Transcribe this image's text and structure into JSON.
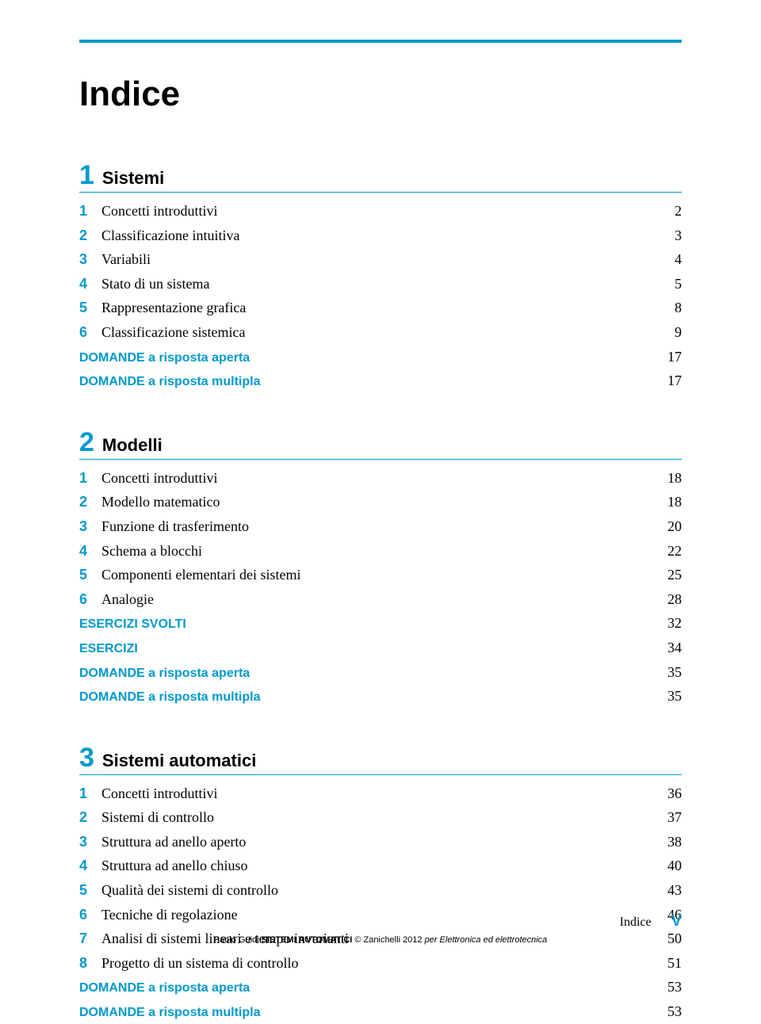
{
  "colors": {
    "accent": "#0099cc",
    "text": "#000000",
    "bg": "#ffffff"
  },
  "title": "Indice",
  "chapters": [
    {
      "num": "1",
      "name": "Sistemi",
      "items": [
        {
          "n": "1",
          "label": "Concetti introduttivi",
          "p": "2"
        },
        {
          "n": "2",
          "label": "Classificazione intuitiva",
          "p": "3"
        },
        {
          "n": "3",
          "label": "Variabili",
          "p": "4"
        },
        {
          "n": "4",
          "label": "Stato di un sistema",
          "p": "5"
        },
        {
          "n": "5",
          "label": "Rappresentazione grafica",
          "p": "8"
        },
        {
          "n": "6",
          "label": "Classificazione sistemica",
          "p": "9"
        },
        {
          "special": true,
          "label": "DOMANDE a risposta aperta",
          "p": "17"
        },
        {
          "special": true,
          "label": "DOMANDE a risposta multipla",
          "p": "17"
        }
      ]
    },
    {
      "num": "2",
      "name": "Modelli",
      "items": [
        {
          "n": "1",
          "label": "Concetti introduttivi",
          "p": "18"
        },
        {
          "n": "2",
          "label": "Modello matematico",
          "p": "18"
        },
        {
          "n": "3",
          "label": "Funzione di trasferimento",
          "p": "20"
        },
        {
          "n": "4",
          "label": "Schema a blocchi",
          "p": "22"
        },
        {
          "n": "5",
          "label": "Componenti elementari dei sistemi",
          "p": "25"
        },
        {
          "n": "6",
          "label": "Analogie",
          "p": "28"
        },
        {
          "special": true,
          "label": "ESERCIZI SVOLTI",
          "p": "32"
        },
        {
          "special": true,
          "label": "ESERCIZI",
          "p": "34"
        },
        {
          "special": true,
          "label": "DOMANDE a risposta aperta",
          "p": "35"
        },
        {
          "special": true,
          "label": "DOMANDE a risposta multipla",
          "p": "35"
        }
      ]
    },
    {
      "num": "3",
      "name": "Sistemi automatici",
      "items": [
        {
          "n": "1",
          "label": "Concetti introduttivi",
          "p": "36"
        },
        {
          "n": "2",
          "label": "Sistemi di controllo",
          "p": "37"
        },
        {
          "n": "3",
          "label": "Struttura ad anello aperto",
          "p": "38"
        },
        {
          "n": "4",
          "label": "Struttura ad anello chiuso",
          "p": "40"
        },
        {
          "n": "5",
          "label": "Qualità dei sistemi di controllo",
          "p": "43"
        },
        {
          "n": "6",
          "label": "Tecniche di regolazione",
          "p": "46"
        },
        {
          "n": "7",
          "label": "Analisi di sistemi lineari e tempo invarianti",
          "p": "50"
        },
        {
          "n": "8",
          "label": "Progetto di un sistema di controllo",
          "p": "51"
        },
        {
          "special": true,
          "label": "DOMANDE a risposta aperta",
          "p": "53"
        },
        {
          "special": true,
          "label": "DOMANDE a risposta multipla",
          "p": "53"
        }
      ]
    }
  ],
  "footer": {
    "label": "Indice",
    "pagenum": "V",
    "credit_prefix": "Paolo Guidi ",
    "credit_bold": "SISTEMI AUTOMATICI",
    "credit_suffix": " © Zanichelli 2012 ",
    "credit_italic": "per Elettronica ed elettrotecnica"
  }
}
